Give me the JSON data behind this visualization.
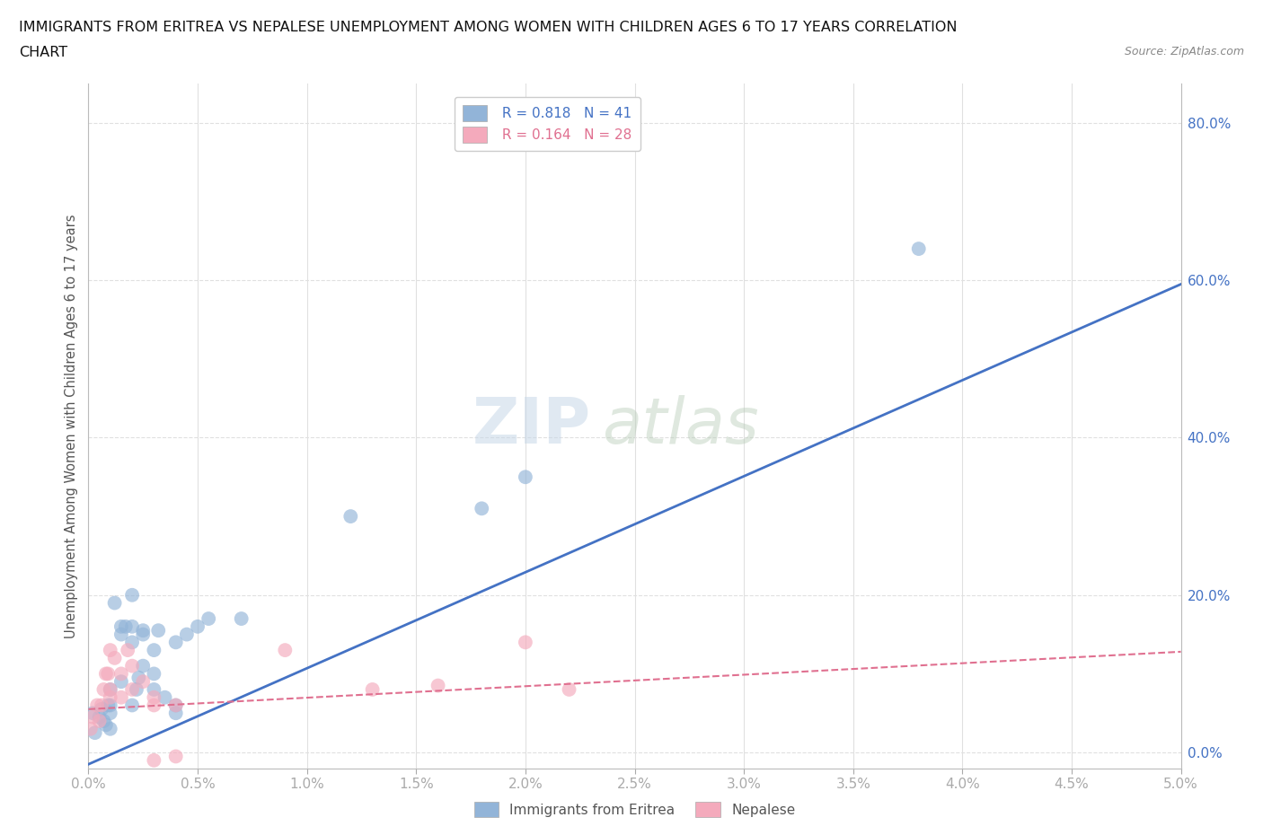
{
  "title_line1": "IMMIGRANTS FROM ERITREA VS NEPALESE UNEMPLOYMENT AMONG WOMEN WITH CHILDREN AGES 6 TO 17 YEARS CORRELATION",
  "title_line2": "CHART",
  "source": "Source: ZipAtlas.com",
  "xlim": [
    0.0,
    0.05
  ],
  "ylim": [
    -0.02,
    0.85
  ],
  "ylabel": "Unemployment Among Women with Children Ages 6 to 17 years",
  "watermark_zip": "ZIP",
  "watermark_atlas": "atlas",
  "blue_R": "0.818",
  "blue_N": "41",
  "pink_R": "0.164",
  "pink_N": "28",
  "blue_color": "#92B4D8",
  "pink_color": "#F4AABC",
  "blue_line_color": "#4472C4",
  "pink_line_color": "#E07090",
  "tick_label_color": "#4472C4",
  "blue_scatter": [
    [
      0.0002,
      0.05
    ],
    [
      0.0003,
      0.025
    ],
    [
      0.0005,
      0.045
    ],
    [
      0.0006,
      0.055
    ],
    [
      0.0007,
      0.04
    ],
    [
      0.0008,
      0.035
    ],
    [
      0.0009,
      0.06
    ],
    [
      0.001,
      0.03
    ],
    [
      0.001,
      0.05
    ],
    [
      0.001,
      0.06
    ],
    [
      0.001,
      0.08
    ],
    [
      0.0012,
      0.19
    ],
    [
      0.0015,
      0.09
    ],
    [
      0.0015,
      0.15
    ],
    [
      0.0015,
      0.16
    ],
    [
      0.0017,
      0.16
    ],
    [
      0.002,
      0.06
    ],
    [
      0.002,
      0.14
    ],
    [
      0.002,
      0.16
    ],
    [
      0.002,
      0.2
    ],
    [
      0.0022,
      0.08
    ],
    [
      0.0023,
      0.095
    ],
    [
      0.0025,
      0.15
    ],
    [
      0.0025,
      0.155
    ],
    [
      0.0025,
      0.11
    ],
    [
      0.003,
      0.08
    ],
    [
      0.003,
      0.1
    ],
    [
      0.003,
      0.13
    ],
    [
      0.0032,
      0.155
    ],
    [
      0.0035,
      0.07
    ],
    [
      0.004,
      0.05
    ],
    [
      0.004,
      0.06
    ],
    [
      0.004,
      0.14
    ],
    [
      0.0045,
      0.15
    ],
    [
      0.005,
      0.16
    ],
    [
      0.0055,
      0.17
    ],
    [
      0.007,
      0.17
    ],
    [
      0.012,
      0.3
    ],
    [
      0.018,
      0.31
    ],
    [
      0.02,
      0.35
    ],
    [
      0.038,
      0.64
    ]
  ],
  "pink_scatter": [
    [
      0.0001,
      0.03
    ],
    [
      0.0002,
      0.045
    ],
    [
      0.0004,
      0.06
    ],
    [
      0.0005,
      0.04
    ],
    [
      0.0006,
      0.06
    ],
    [
      0.0007,
      0.08
    ],
    [
      0.0008,
      0.1
    ],
    [
      0.0009,
      0.1
    ],
    [
      0.001,
      0.07
    ],
    [
      0.001,
      0.08
    ],
    [
      0.001,
      0.13
    ],
    [
      0.0012,
      0.12
    ],
    [
      0.0015,
      0.07
    ],
    [
      0.0015,
      0.1
    ],
    [
      0.0018,
      0.13
    ],
    [
      0.002,
      0.08
    ],
    [
      0.002,
      0.11
    ],
    [
      0.0025,
      0.09
    ],
    [
      0.003,
      0.06
    ],
    [
      0.003,
      0.07
    ],
    [
      0.003,
      -0.01
    ],
    [
      0.004,
      -0.005
    ],
    [
      0.004,
      0.06
    ],
    [
      0.009,
      0.13
    ],
    [
      0.013,
      0.08
    ],
    [
      0.016,
      0.085
    ],
    [
      0.02,
      0.14
    ],
    [
      0.022,
      0.08
    ]
  ],
  "blue_trend_x": [
    0.0,
    0.05
  ],
  "blue_trend_y": [
    -0.015,
    0.595
  ],
  "pink_trend_x": [
    0.0,
    0.05
  ],
  "pink_trend_y": [
    0.055,
    0.128
  ],
  "grid_color": "#E0E0E0",
  "background_color": "#FFFFFF",
  "legend_border_color": "#CCCCCC"
}
